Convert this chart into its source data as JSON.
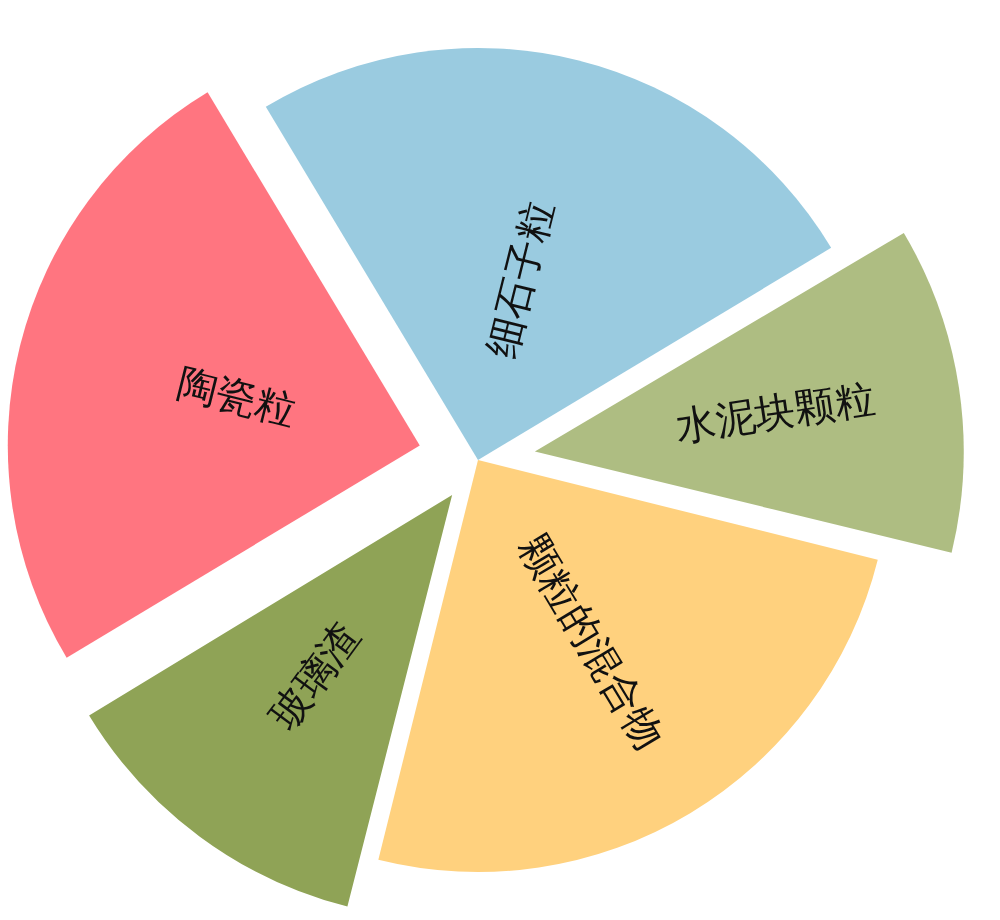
{
  "chart_data": {
    "type": "pie",
    "categories": [
      "细石子粒",
      "水泥块颗粒",
      "颗粒的混合物",
      "玻璃渣",
      "陶瓷粒"
    ],
    "values": [
      25,
      12.5,
      25,
      12.5,
      25
    ],
    "colors": [
      "#9acbe0",
      "#aebd82",
      "#ffd17e",
      "#8fa356",
      "#ff7580"
    ]
  }
}
